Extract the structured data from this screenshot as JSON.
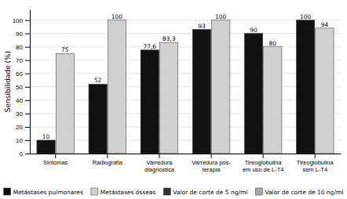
{
  "chart_data": {
    "type": "bar",
    "categories": [
      "Sintomas",
      "Radiografia",
      "Varredura\ndiagnóstica",
      "Varredura pós-\nterapia",
      "Tireoglobulina\nem uso de L-T4",
      "Tireoglobulina\nsem L-T4"
    ],
    "series": [
      {
        "name": "Metástases pulmonares",
        "color": "#111111",
        "values": [
          10,
          52,
          77.6,
          93,
          90,
          100
        ],
        "value_labels": [
          "10",
          "52",
          "77,6",
          "93",
          "90",
          "100"
        ]
      },
      {
        "name": "Metástases ósseas",
        "color": "#d0d0d0",
        "values": [
          75,
          100,
          83.3,
          100,
          80,
          94
        ],
        "value_labels": [
          "75",
          "100",
          "83,3",
          "100",
          "80",
          "94"
        ]
      }
    ],
    "extra_legend": [
      {
        "name": "Valor de corte de 5 ng/ml",
        "color": "#333333"
      },
      {
        "name": "Valor de corte de 10 ng/ml",
        "color": "#aaaaaa"
      }
    ],
    "ylabel": "Sensibilidade (%)",
    "ylim": [
      0,
      108
    ],
    "yticks": [
      0,
      10,
      20,
      30,
      40,
      50,
      60,
      70,
      80,
      90,
      100
    ],
    "grid": true,
    "data_labels": true
  }
}
